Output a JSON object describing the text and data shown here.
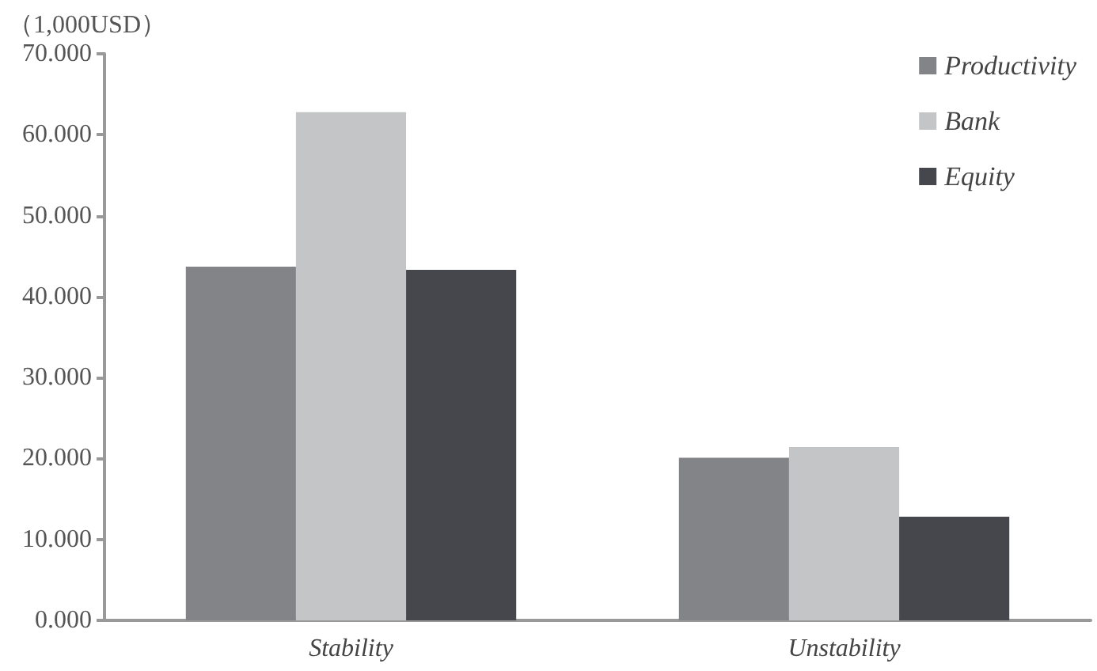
{
  "chart_data": {
    "type": "bar",
    "ylabel": "（1,000USD）",
    "categories": [
      "Stability",
      "Unstability"
    ],
    "series": [
      {
        "name": "Productivity",
        "color": "#838487",
        "values": [
          43.7,
          20.1
        ]
      },
      {
        "name": "Bank",
        "color": "#c4c5c7",
        "values": [
          62.8,
          21.4
        ]
      },
      {
        "name": "Equity",
        "color": "#46474c",
        "values": [
          43.3,
          12.8
        ]
      }
    ],
    "ylim": [
      0,
      70
    ],
    "yticks": [
      {
        "value": 0,
        "label": "0.000"
      },
      {
        "value": 10,
        "label": "10.000"
      },
      {
        "value": 20,
        "label": "20.000"
      },
      {
        "value": 30,
        "label": "30.000"
      },
      {
        "value": 40,
        "label": "40.000"
      },
      {
        "value": 50,
        "label": "50.000"
      },
      {
        "value": 60,
        "label": "60.000"
      },
      {
        "value": 70,
        "label": "70.000"
      }
    ],
    "grid": false,
    "legend": "top right"
  }
}
